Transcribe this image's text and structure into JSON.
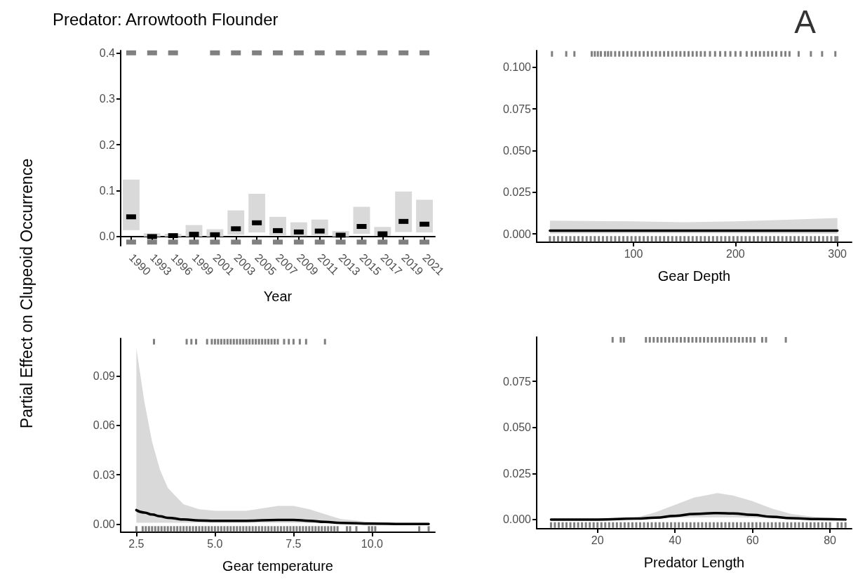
{
  "chart_data": [
    {
      "type": "bar",
      "title": "Predator: Arrowtooth Flounder",
      "ylabel": "Partial Effect on Clupeoid Occurrence",
      "xlabel": "Year",
      "categories": [
        "1990",
        "1993",
        "1996",
        "1999",
        "2001",
        "2003",
        "2005",
        "2007",
        "2009",
        "2011",
        "2013",
        "2015",
        "2017",
        "2019",
        "2021"
      ],
      "ylim": [
        -0.02,
        0.405
      ],
      "yticks": [
        {
          "value": 0,
          "label": "0.0"
        },
        {
          "value": 0.1,
          "label": "0.1"
        },
        {
          "value": 0.2,
          "label": "0.2"
        },
        {
          "value": 0.3,
          "label": "0.3"
        },
        {
          "value": 0.4,
          "label": "0.4"
        }
      ],
      "series": [
        {
          "type": "bar",
          "color": "#d9d9d9",
          "base": [
            0.014,
            0,
            0,
            0,
            0,
            0.004,
            0.009,
            0.003,
            0.001,
            0.003,
            0,
            0.006,
            0.002,
            0.01,
            0.009
          ],
          "values": [
            0.11,
            0.007,
            0.006,
            0.025,
            0.016,
            0.053,
            0.084,
            0.04,
            0.03,
            0.034,
            0.012,
            0.059,
            0.019,
            0.088,
            0.071
          ]
        },
        {
          "type": "scatter",
          "color": "#000000",
          "values": [
            0.043,
            0,
            0.002,
            0.005,
            0.004,
            0.017,
            0.03,
            0.013,
            0.01,
            0.012,
            0.003,
            0.022,
            0.006,
            0.033,
            0.027
          ]
        },
        {
          "type": "scatter",
          "color": "#808080",
          "values": [
            0.4,
            0.4,
            0.4,
            null,
            0.4,
            0.4,
            0.4,
            0.4,
            0.4,
            0.4,
            0.4,
            0.4,
            0.4,
            0.4,
            0.4
          ]
        },
        {
          "type": "scatter",
          "color": "#808080",
          "values": [
            -0.012,
            -0.012,
            -0.012,
            -0.012,
            -0.012,
            -0.012,
            -0.012,
            -0.012,
            -0.012,
            -0.012,
            -0.012,
            -0.012,
            -0.012,
            -0.012,
            -0.012
          ]
        }
      ]
    },
    {
      "type": "line",
      "xlabel": "Gear Depth",
      "annotations": [
        "A"
      ],
      "xlim": [
        5,
        314
      ],
      "xticks": [
        100,
        200,
        300
      ],
      "ylim": [
        -0.005,
        0.11
      ],
      "yticks": [
        {
          "value": 0,
          "label": "0.000"
        },
        {
          "value": 0.025,
          "label": "0.025"
        },
        {
          "value": 0.05,
          "label": "0.050"
        },
        {
          "value": 0.075,
          "label": "0.075"
        },
        {
          "value": 0.1,
          "label": "0.100"
        }
      ],
      "series": [
        {
          "type": "line",
          "color": "#000000",
          "x": [
            18,
            100,
            150,
            200,
            250,
            300
          ],
          "values": [
            0.002,
            0.002,
            0.002,
            0.002,
            0.002,
            0.002
          ],
          "lower": [
            0.0003,
            0.0004,
            0.0004,
            0.0004,
            0.0003,
            0.0002
          ],
          "upper": [
            0.008,
            0.0075,
            0.007,
            0.0075,
            0.0085,
            0.0095
          ]
        },
        {
          "type": "scatter",
          "color": "#808080",
          "x": [
            20,
            34,
            42,
            59,
            62,
            65,
            68,
            72,
            75,
            78,
            82,
            86,
            90,
            94,
            98,
            102,
            106,
            110,
            114,
            118,
            122,
            126,
            130,
            134,
            138,
            142,
            146,
            150,
            154,
            158,
            162,
            166,
            170,
            175,
            180,
            185,
            190,
            195,
            200,
            205,
            211,
            216,
            220,
            224,
            228,
            232,
            236,
            240,
            245,
            249,
            253,
            262,
            274,
            285,
            298
          ],
          "values": [
            0.108,
            0.108,
            0.108,
            0.108,
            0.108,
            0.108,
            0.108,
            0.108,
            0.108,
            0.108,
            0.108,
            0.108,
            0.108,
            0.108,
            0.108,
            0.108,
            0.108,
            0.108,
            0.108,
            0.108,
            0.108,
            0.108,
            0.108,
            0.108,
            0.108,
            0.108,
            0.108,
            0.108,
            0.108,
            0.108,
            0.108,
            0.108,
            0.108,
            0.108,
            0.108,
            0.108,
            0.108,
            0.108,
            0.108,
            0.108,
            0.108,
            0.108,
            0.108,
            0.108,
            0.108,
            0.108,
            0.108,
            0.108,
            0.108,
            0.108,
            0.108,
            0.108,
            0.108,
            0.108,
            0.108
          ]
        },
        {
          "type": "scatter",
          "color": "#808080",
          "x": [
            18,
            22,
            26,
            30,
            34,
            38,
            42,
            46,
            50,
            54,
            58,
            62,
            66,
            70,
            74,
            78,
            82,
            86,
            90,
            94,
            98,
            102,
            106,
            110,
            114,
            118,
            122,
            126,
            130,
            134,
            138,
            142,
            146,
            150,
            154,
            158,
            162,
            166,
            170,
            174,
            178,
            182,
            186,
            190,
            194,
            198,
            202,
            206,
            210,
            214,
            218,
            222,
            226,
            230,
            234,
            238,
            242,
            246,
            250,
            254,
            258,
            262,
            266,
            270,
            274,
            278,
            282,
            286,
            290,
            294,
            298,
            300
          ],
          "values": [
            -0.003,
            -0.003,
            -0.003,
            -0.003,
            -0.003,
            -0.003,
            -0.003,
            -0.003,
            -0.003,
            -0.003,
            -0.003,
            -0.003,
            -0.003,
            -0.003,
            -0.003,
            -0.003,
            -0.003,
            -0.003,
            -0.003,
            -0.003,
            -0.003,
            -0.003,
            -0.003,
            -0.003,
            -0.003,
            -0.003,
            -0.003,
            -0.003,
            -0.003,
            -0.003,
            -0.003,
            -0.003,
            -0.003,
            -0.003,
            -0.003,
            -0.003,
            -0.003,
            -0.003,
            -0.003,
            -0.003,
            -0.003,
            -0.003,
            -0.003,
            -0.003,
            -0.003,
            -0.003,
            -0.003,
            -0.003,
            -0.003,
            -0.003,
            -0.003,
            -0.003,
            -0.003,
            -0.003,
            -0.003,
            -0.003,
            -0.003,
            -0.003,
            -0.003,
            -0.003,
            -0.003,
            -0.003,
            -0.003,
            -0.003,
            -0.003,
            -0.003,
            -0.003,
            -0.003,
            -0.003,
            -0.003,
            -0.003,
            -0.003
          ]
        }
      ]
    },
    {
      "type": "line",
      "xlabel": "Gear temperature",
      "xlim": [
        2.0,
        12.0
      ],
      "xticks": [
        {
          "value": 2.5,
          "label": "2.5"
        },
        {
          "value": 5,
          "label": "5.0"
        },
        {
          "value": 7.5,
          "label": "7.5"
        },
        {
          "value": 10,
          "label": "10.0"
        }
      ],
      "ylim": [
        -0.005,
        0.113
      ],
      "yticks": [
        {
          "value": 0,
          "label": "0.00"
        },
        {
          "value": 0.03,
          "label": "0.03"
        },
        {
          "value": 0.06,
          "label": "0.06"
        },
        {
          "value": 0.09,
          "label": "0.09"
        }
      ],
      "series": [
        {
          "type": "line",
          "color": "#000000",
          "x": [
            2.5,
            2.75,
            3,
            3.25,
            3.5,
            4,
            4.5,
            5,
            6,
            7,
            7.5,
            8,
            8.5,
            9,
            10,
            11,
            11.8
          ],
          "values": [
            0.0085,
            0.007,
            0.0058,
            0.0047,
            0.0038,
            0.0028,
            0.0022,
            0.002,
            0.002,
            0.0025,
            0.0025,
            0.002,
            0.0013,
            0.0007,
            0.0002,
            0,
            0
          ],
          "lower": [
            0.0008,
            0.0008,
            0.0008,
            0.0008,
            0.0008,
            0.0008,
            0.0008,
            0.0008,
            0.0008,
            0.0008,
            0.0008,
            0.0006,
            0.0004,
            0.0002,
            0,
            0,
            0
          ],
          "upper": [
            0.107,
            0.075,
            0.05,
            0.033,
            0.022,
            0.012,
            0.009,
            0.008,
            0.008,
            0.011,
            0.011,
            0.009,
            0.006,
            0.003,
            0.0012,
            0.0005,
            0.0003
          ]
        },
        {
          "type": "scatter",
          "color": "#808080",
          "x": [
            3.06,
            4.1,
            4.25,
            4.4,
            4.75,
            4.9,
            5.0,
            5.1,
            5.2,
            5.3,
            5.4,
            5.5,
            5.6,
            5.7,
            5.8,
            5.9,
            6.0,
            6.1,
            6.2,
            6.3,
            6.4,
            6.5,
            6.6,
            6.7,
            6.8,
            6.9,
            7.0,
            7.2,
            7.35,
            7.5,
            7.7,
            7.9,
            8.5
          ],
          "values": [
            0.111,
            0.111,
            0.111,
            0.111,
            0.111,
            0.111,
            0.111,
            0.111,
            0.111,
            0.111,
            0.111,
            0.111,
            0.111,
            0.111,
            0.111,
            0.111,
            0.111,
            0.111,
            0.111,
            0.111,
            0.111,
            0.111,
            0.111,
            0.111,
            0.111,
            0.111,
            0.111,
            0.111,
            0.111,
            0.111,
            0.111,
            0.111,
            0.111
          ]
        },
        {
          "type": "scatter",
          "color": "#808080",
          "x": [
            2.5,
            2.7,
            2.8,
            2.9,
            3.0,
            3.1,
            3.2,
            3.3,
            3.4,
            3.5,
            3.6,
            3.7,
            3.8,
            3.9,
            4.0,
            4.1,
            4.2,
            4.3,
            4.4,
            4.5,
            4.6,
            4.7,
            4.8,
            4.9,
            5.0,
            5.1,
            5.2,
            5.3,
            5.4,
            5.5,
            5.6,
            5.7,
            5.8,
            5.9,
            6.0,
            6.1,
            6.2,
            6.3,
            6.4,
            6.5,
            6.6,
            6.7,
            6.8,
            6.9,
            7.0,
            7.1,
            7.2,
            7.3,
            7.4,
            7.5,
            7.6,
            7.7,
            7.8,
            7.9,
            8.0,
            8.1,
            8.2,
            8.3,
            8.4,
            8.5,
            8.6,
            8.7,
            8.8,
            8.9,
            9.2,
            9.3,
            9.5,
            9.9,
            10.0,
            10.1,
            11.5,
            11.8
          ],
          "values": [
            -0.003,
            -0.003,
            -0.003,
            -0.003,
            -0.003,
            -0.003,
            -0.003,
            -0.003,
            -0.003,
            -0.003,
            -0.003,
            -0.003,
            -0.003,
            -0.003,
            -0.003,
            -0.003,
            -0.003,
            -0.003,
            -0.003,
            -0.003,
            -0.003,
            -0.003,
            -0.003,
            -0.003,
            -0.003,
            -0.003,
            -0.003,
            -0.003,
            -0.003,
            -0.003,
            -0.003,
            -0.003,
            -0.003,
            -0.003,
            -0.003,
            -0.003,
            -0.003,
            -0.003,
            -0.003,
            -0.003,
            -0.003,
            -0.003,
            -0.003,
            -0.003,
            -0.003,
            -0.003,
            -0.003,
            -0.003,
            -0.003,
            -0.003,
            -0.003,
            -0.003,
            -0.003,
            -0.003,
            -0.003,
            -0.003,
            -0.003,
            -0.003,
            -0.003,
            -0.003,
            -0.003,
            -0.003,
            -0.003,
            -0.003,
            -0.003,
            -0.003,
            -0.003,
            -0.003,
            -0.003,
            -0.003,
            -0.003,
            -0.003
          ]
        }
      ]
    },
    {
      "type": "line",
      "xlabel": "Predator Length",
      "xlim": [
        4.3,
        85.6
      ],
      "xticks": [
        20,
        40,
        60,
        80
      ],
      "ylim": [
        -0.005,
        0.099
      ],
      "yticks": [
        {
          "value": 0,
          "label": "0.000"
        },
        {
          "value": 0.025,
          "label": "0.025"
        },
        {
          "value": 0.05,
          "label": "0.050"
        },
        {
          "value": 0.075,
          "label": "0.075"
        }
      ],
      "series": [
        {
          "type": "line",
          "color": "#000000",
          "x": [
            8,
            20,
            30,
            35,
            40,
            45,
            51,
            55,
            60,
            65,
            70,
            77,
            84
          ],
          "values": [
            0,
            0,
            0.0005,
            0.001,
            0.002,
            0.003,
            0.0035,
            0.0033,
            0.0025,
            0.0015,
            0.0007,
            0.0002,
            0
          ],
          "lower": [
            0,
            0,
            0.0002,
            0.0005,
            0.001,
            0.0012,
            0.0012,
            0.0012,
            0.001,
            0.0006,
            0.0003,
            0.0001,
            0
          ],
          "upper": [
            0,
            0.0002,
            0.001,
            0.004,
            0.008,
            0.012,
            0.0143,
            0.013,
            0.01,
            0.006,
            0.003,
            0.0012,
            0.0005
          ]
        },
        {
          "type": "scatter",
          "color": "#808080",
          "x": [
            23.9,
            26,
            26.8,
            32.5,
            33.5,
            34.5,
            35.5,
            36.5,
            37.5,
            38.5,
            39.5,
            40.5,
            41.5,
            42.5,
            43.5,
            44.5,
            45.5,
            46.5,
            47.5,
            48.5,
            49.5,
            50.5,
            51.5,
            52.5,
            53.5,
            54.5,
            55.5,
            56.5,
            57.5,
            58.5,
            59.5,
            60.5,
            62.5,
            63.5,
            68.6
          ],
          "values": [
            0.0975,
            0.0975,
            0.0975,
            0.0975,
            0.0975,
            0.0975,
            0.0975,
            0.0975,
            0.0975,
            0.0975,
            0.0975,
            0.0975,
            0.0975,
            0.0975,
            0.0975,
            0.0975,
            0.0975,
            0.0975,
            0.0975,
            0.0975,
            0.0975,
            0.0975,
            0.0975,
            0.0975,
            0.0975,
            0.0975,
            0.0975,
            0.0975,
            0.0975,
            0.0975,
            0.0975,
            0.0975,
            0.0975,
            0.0975,
            0.0975
          ]
        },
        {
          "type": "scatter",
          "color": "#808080",
          "x": [
            8,
            9,
            10,
            11,
            12,
            13,
            14,
            15,
            16,
            17,
            18,
            19,
            20,
            21,
            22,
            23,
            24,
            25,
            26,
            27,
            28,
            29,
            30,
            31,
            32,
            33,
            34,
            35,
            36,
            37,
            38,
            39,
            40,
            41,
            42,
            43,
            44,
            45,
            46,
            47,
            48,
            49,
            50,
            51,
            52,
            53,
            54,
            55,
            56,
            57,
            58,
            59,
            60,
            61,
            62,
            63,
            64,
            65,
            66,
            67,
            68,
            69,
            70,
            71,
            72,
            73,
            74,
            75,
            76,
            77,
            78,
            79,
            80,
            82,
            83,
            84
          ],
          "values": [
            -0.003,
            -0.003,
            -0.003,
            -0.003,
            -0.003,
            -0.003,
            -0.003,
            -0.003,
            -0.003,
            -0.003,
            -0.003,
            -0.003,
            -0.003,
            -0.003,
            -0.003,
            -0.003,
            -0.003,
            -0.003,
            -0.003,
            -0.003,
            -0.003,
            -0.003,
            -0.003,
            -0.003,
            -0.003,
            -0.003,
            -0.003,
            -0.003,
            -0.003,
            -0.003,
            -0.003,
            -0.003,
            -0.003,
            -0.003,
            -0.003,
            -0.003,
            -0.003,
            -0.003,
            -0.003,
            -0.003,
            -0.003,
            -0.003,
            -0.003,
            -0.003,
            -0.003,
            -0.003,
            -0.003,
            -0.003,
            -0.003,
            -0.003,
            -0.003,
            -0.003,
            -0.003,
            -0.003,
            -0.003,
            -0.003,
            -0.003,
            -0.003,
            -0.003,
            -0.003,
            -0.003,
            -0.003,
            -0.003,
            -0.003,
            -0.003,
            -0.003,
            -0.003,
            -0.003,
            -0.003,
            -0.003,
            -0.003,
            -0.003,
            -0.003,
            -0.003,
            -0.003,
            -0.003
          ]
        }
      ]
    }
  ]
}
